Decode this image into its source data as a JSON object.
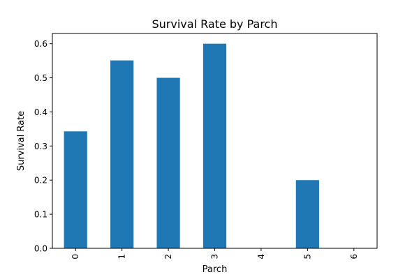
{
  "chart_data": {
    "type": "bar",
    "title": "Survival Rate by Parch",
    "xlabel": "Parch",
    "ylabel": "Survival Rate",
    "categories": [
      "0",
      "1",
      "2",
      "3",
      "4",
      "5",
      "6"
    ],
    "values": [
      0.343,
      0.551,
      0.5,
      0.6,
      0.0,
      0.2,
      0.0
    ],
    "ylim": [
      0,
      0.63
    ],
    "yticks": [
      "0.0",
      "0.1",
      "0.2",
      "0.3",
      "0.4",
      "0.5",
      "0.6"
    ],
    "grid": false,
    "bar_color": "#1f77b4"
  }
}
